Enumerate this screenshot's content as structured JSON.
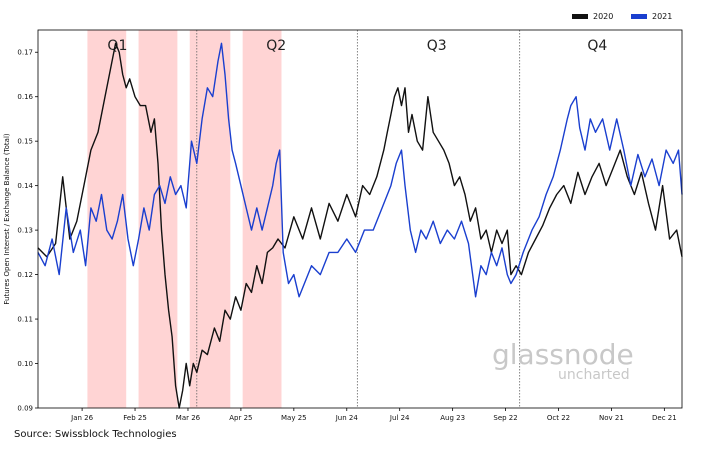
{
  "chart_data": {
    "type": "line",
    "ylabel": "Futures Open Interest / Exchange Balance (Total)",
    "ylim": [
      0.09,
      0.175
    ],
    "yticks": [
      0.09,
      0.1,
      0.11,
      0.12,
      0.13,
      0.14,
      0.15,
      0.16,
      0.17
    ],
    "x_domain": [
      0,
      365
    ],
    "xticks": [
      {
        "label": "Jan 26",
        "x": 25
      },
      {
        "label": "Feb 25",
        "x": 55
      },
      {
        "label": "Mar 26",
        "x": 85
      },
      {
        "label": "Apr 25",
        "x": 115
      },
      {
        "label": "May 25",
        "x": 145
      },
      {
        "label": "Jun 24",
        "x": 175
      },
      {
        "label": "Jul 24",
        "x": 205
      },
      {
        "label": "Aug 23",
        "x": 235
      },
      {
        "label": "Sep 22",
        "x": 265
      },
      {
        "label": "Oct 22",
        "x": 295
      },
      {
        "label": "Nov 21",
        "x": 325
      },
      {
        "label": "Dec 21",
        "x": 355
      }
    ],
    "quarters": [
      {
        "label": "Q1",
        "at": 45
      },
      {
        "label": "Q2",
        "at": 135
      },
      {
        "label": "Q3",
        "at": 226
      },
      {
        "label": "Q4",
        "at": 317
      }
    ],
    "quarter_boundaries": [
      90,
      181,
      273
    ],
    "shaded_ranges": [
      [
        28,
        50
      ],
      [
        57,
        79
      ],
      [
        86,
        109
      ],
      [
        116,
        138
      ]
    ],
    "grid": false,
    "legend_position": "top-right",
    "series": [
      {
        "name": "2020",
        "color": "#111111",
        "points": [
          [
            0,
            0.126
          ],
          [
            5,
            0.124
          ],
          [
            10,
            0.127
          ],
          [
            14,
            0.142
          ],
          [
            18,
            0.128
          ],
          [
            22,
            0.132
          ],
          [
            26,
            0.14
          ],
          [
            30,
            0.148
          ],
          [
            34,
            0.152
          ],
          [
            38,
            0.16
          ],
          [
            41,
            0.166
          ],
          [
            44,
            0.172
          ],
          [
            46,
            0.17
          ],
          [
            48,
            0.165
          ],
          [
            50,
            0.162
          ],
          [
            52,
            0.164
          ],
          [
            55,
            0.16
          ],
          [
            58,
            0.158
          ],
          [
            61,
            0.158
          ],
          [
            64,
            0.152
          ],
          [
            66,
            0.155
          ],
          [
            68,
            0.145
          ],
          [
            70,
            0.13
          ],
          [
            72,
            0.12
          ],
          [
            74,
            0.112
          ],
          [
            76,
            0.106
          ],
          [
            78,
            0.095
          ],
          [
            80,
            0.09
          ],
          [
            82,
            0.094
          ],
          [
            84,
            0.1
          ],
          [
            86,
            0.095
          ],
          [
            88,
            0.1
          ],
          [
            90,
            0.098
          ],
          [
            93,
            0.103
          ],
          [
            96,
            0.102
          ],
          [
            100,
            0.108
          ],
          [
            103,
            0.105
          ],
          [
            106,
            0.112
          ],
          [
            109,
            0.11
          ],
          [
            112,
            0.115
          ],
          [
            115,
            0.112
          ],
          [
            118,
            0.118
          ],
          [
            121,
            0.116
          ],
          [
            124,
            0.122
          ],
          [
            127,
            0.118
          ],
          [
            130,
            0.125
          ],
          [
            133,
            0.126
          ],
          [
            136,
            0.128
          ],
          [
            140,
            0.126
          ],
          [
            145,
            0.133
          ],
          [
            150,
            0.128
          ],
          [
            155,
            0.135
          ],
          [
            160,
            0.128
          ],
          [
            165,
            0.136
          ],
          [
            170,
            0.132
          ],
          [
            175,
            0.138
          ],
          [
            180,
            0.133
          ],
          [
            184,
            0.14
          ],
          [
            188,
            0.138
          ],
          [
            192,
            0.142
          ],
          [
            196,
            0.148
          ],
          [
            198,
            0.152
          ],
          [
            200,
            0.156
          ],
          [
            202,
            0.16
          ],
          [
            204,
            0.162
          ],
          [
            206,
            0.158
          ],
          [
            208,
            0.162
          ],
          [
            210,
            0.152
          ],
          [
            212,
            0.156
          ],
          [
            215,
            0.15
          ],
          [
            218,
            0.148
          ],
          [
            221,
            0.16
          ],
          [
            224,
            0.152
          ],
          [
            227,
            0.15
          ],
          [
            230,
            0.148
          ],
          [
            233,
            0.145
          ],
          [
            236,
            0.14
          ],
          [
            239,
            0.142
          ],
          [
            242,
            0.138
          ],
          [
            245,
            0.132
          ],
          [
            248,
            0.135
          ],
          [
            251,
            0.128
          ],
          [
            254,
            0.13
          ],
          [
            257,
            0.125
          ],
          [
            260,
            0.13
          ],
          [
            263,
            0.127
          ],
          [
            266,
            0.13
          ],
          [
            268,
            0.12
          ],
          [
            271,
            0.122
          ],
          [
            274,
            0.12
          ],
          [
            278,
            0.125
          ],
          [
            282,
            0.128
          ],
          [
            286,
            0.131
          ],
          [
            290,
            0.135
          ],
          [
            294,
            0.138
          ],
          [
            298,
            0.14
          ],
          [
            302,
            0.136
          ],
          [
            306,
            0.143
          ],
          [
            310,
            0.138
          ],
          [
            314,
            0.142
          ],
          [
            318,
            0.145
          ],
          [
            322,
            0.14
          ],
          [
            326,
            0.144
          ],
          [
            330,
            0.148
          ],
          [
            334,
            0.142
          ],
          [
            338,
            0.138
          ],
          [
            342,
            0.143
          ],
          [
            346,
            0.136
          ],
          [
            350,
            0.13
          ],
          [
            354,
            0.14
          ],
          [
            358,
            0.128
          ],
          [
            362,
            0.13
          ],
          [
            365,
            0.124
          ]
        ]
      },
      {
        "name": "2021",
        "color": "#1a3fcf",
        "points": [
          [
            0,
            0.125
          ],
          [
            4,
            0.122
          ],
          [
            8,
            0.128
          ],
          [
            12,
            0.12
          ],
          [
            16,
            0.135
          ],
          [
            20,
            0.125
          ],
          [
            24,
            0.13
          ],
          [
            27,
            0.122
          ],
          [
            30,
            0.135
          ],
          [
            33,
            0.132
          ],
          [
            36,
            0.138
          ],
          [
            39,
            0.13
          ],
          [
            42,
            0.128
          ],
          [
            45,
            0.132
          ],
          [
            48,
            0.138
          ],
          [
            51,
            0.128
          ],
          [
            54,
            0.122
          ],
          [
            57,
            0.128
          ],
          [
            60,
            0.135
          ],
          [
            63,
            0.13
          ],
          [
            66,
            0.138
          ],
          [
            69,
            0.14
          ],
          [
            72,
            0.136
          ],
          [
            75,
            0.142
          ],
          [
            78,
            0.138
          ],
          [
            81,
            0.14
          ],
          [
            84,
            0.135
          ],
          [
            87,
            0.15
          ],
          [
            90,
            0.145
          ],
          [
            93,
            0.155
          ],
          [
            96,
            0.162
          ],
          [
            99,
            0.16
          ],
          [
            102,
            0.168
          ],
          [
            104,
            0.172
          ],
          [
            106,
            0.165
          ],
          [
            108,
            0.155
          ],
          [
            110,
            0.148
          ],
          [
            112,
            0.145
          ],
          [
            115,
            0.14
          ],
          [
            118,
            0.135
          ],
          [
            121,
            0.13
          ],
          [
            124,
            0.135
          ],
          [
            127,
            0.13
          ],
          [
            130,
            0.135
          ],
          [
            133,
            0.14
          ],
          [
            135,
            0.145
          ],
          [
            137,
            0.148
          ],
          [
            139,
            0.125
          ],
          [
            142,
            0.118
          ],
          [
            145,
            0.12
          ],
          [
            148,
            0.115
          ],
          [
            151,
            0.118
          ],
          [
            155,
            0.122
          ],
          [
            160,
            0.12
          ],
          [
            165,
            0.125
          ],
          [
            170,
            0.125
          ],
          [
            175,
            0.128
          ],
          [
            180,
            0.125
          ],
          [
            185,
            0.13
          ],
          [
            190,
            0.13
          ],
          [
            195,
            0.135
          ],
          [
            200,
            0.14
          ],
          [
            203,
            0.145
          ],
          [
            206,
            0.148
          ],
          [
            208,
            0.14
          ],
          [
            211,
            0.13
          ],
          [
            214,
            0.125
          ],
          [
            217,
            0.13
          ],
          [
            220,
            0.128
          ],
          [
            224,
            0.132
          ],
          [
            228,
            0.127
          ],
          [
            232,
            0.13
          ],
          [
            236,
            0.128
          ],
          [
            240,
            0.132
          ],
          [
            244,
            0.127
          ],
          [
            248,
            0.115
          ],
          [
            251,
            0.122
          ],
          [
            254,
            0.12
          ],
          [
            257,
            0.125
          ],
          [
            260,
            0.122
          ],
          [
            263,
            0.126
          ],
          [
            266,
            0.12
          ],
          [
            268,
            0.118
          ],
          [
            271,
            0.12
          ],
          [
            275,
            0.125
          ],
          [
            280,
            0.13
          ],
          [
            284,
            0.133
          ],
          [
            288,
            0.138
          ],
          [
            292,
            0.142
          ],
          [
            296,
            0.148
          ],
          [
            300,
            0.155
          ],
          [
            302,
            0.158
          ],
          [
            305,
            0.16
          ],
          [
            307,
            0.153
          ],
          [
            310,
            0.148
          ],
          [
            313,
            0.155
          ],
          [
            316,
            0.152
          ],
          [
            320,
            0.155
          ],
          [
            324,
            0.148
          ],
          [
            328,
            0.155
          ],
          [
            332,
            0.148
          ],
          [
            336,
            0.14
          ],
          [
            340,
            0.147
          ],
          [
            344,
            0.142
          ],
          [
            348,
            0.146
          ],
          [
            352,
            0.14
          ],
          [
            356,
            0.148
          ],
          [
            360,
            0.145
          ],
          [
            363,
            0.148
          ],
          [
            365,
            0.138
          ]
        ]
      }
    ]
  },
  "legend": [
    {
      "label": "2020",
      "color": "#111111"
    },
    {
      "label": "2021",
      "color": "#1a3fcf"
    }
  ],
  "watermark": {
    "brand": "glassnode",
    "sub": "uncharted"
  },
  "source": "Source: Swissblock Technologies"
}
